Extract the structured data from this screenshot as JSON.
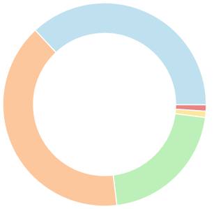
{
  "chart_data": {
    "type": "doughnut",
    "values": [
      37,
      1,
      1,
      21,
      40
    ],
    "colors": [
      "#bfe1ef",
      "#ea8383",
      "#fde79c",
      "#bcf0b8",
      "#fdc79e"
    ]
  }
}
